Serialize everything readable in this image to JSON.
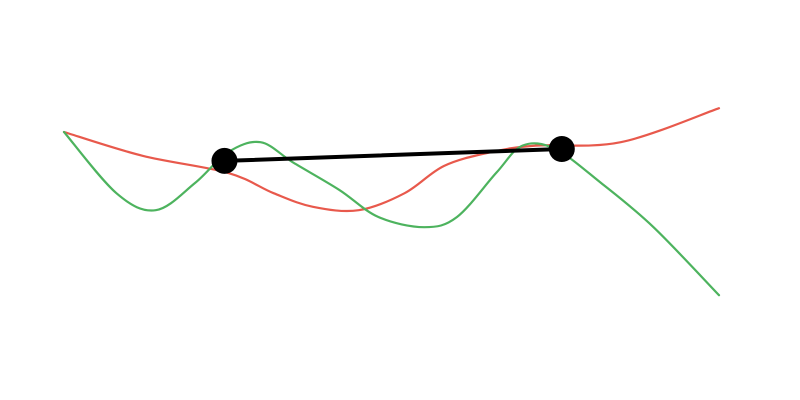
{
  "chart_data": {
    "type": "line",
    "title": "",
    "xlabel": "",
    "ylabel": "",
    "grid": false,
    "legend": "none",
    "xlim": [
      0,
      100
    ],
    "ylim": [
      0,
      100
    ],
    "series": [
      {
        "color": "#e8594c",
        "points": [
          [
            0,
            70
          ],
          [
            12,
            63
          ],
          [
            25,
            58
          ],
          [
            32,
            52
          ],
          [
            38,
            48
          ],
          [
            45,
            47
          ],
          [
            52,
            52
          ],
          [
            58,
            60
          ],
          [
            65,
            64
          ],
          [
            72,
            66
          ],
          [
            85,
            67
          ],
          [
            100,
            77
          ]
        ]
      },
      {
        "color": "#4db35e",
        "points": [
          [
            0,
            70
          ],
          [
            8,
            52
          ],
          [
            14,
            47
          ],
          [
            20,
            55
          ],
          [
            25,
            64
          ],
          [
            30,
            67
          ],
          [
            35,
            61
          ],
          [
            42,
            53
          ],
          [
            48,
            45
          ],
          [
            55,
            42
          ],
          [
            60,
            45
          ],
          [
            66,
            58
          ],
          [
            70,
            66
          ],
          [
            75,
            65
          ],
          [
            82,
            55
          ],
          [
            90,
            42
          ],
          [
            100,
            22
          ]
        ]
      }
    ],
    "segment": {
      "color": "#000000",
      "points": [
        [
          24.5,
          61.5
        ],
        [
          76,
          65
        ]
      ]
    }
  }
}
